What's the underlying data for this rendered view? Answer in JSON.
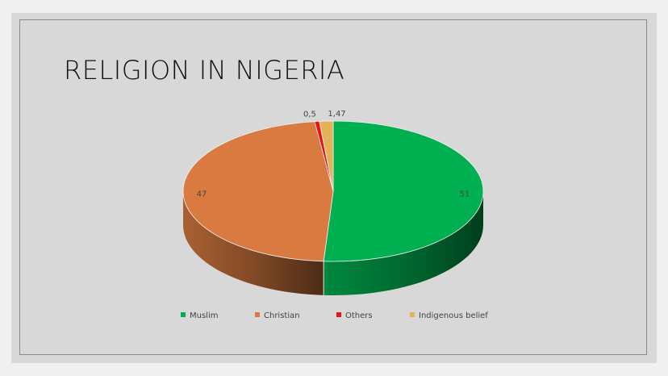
{
  "chart_data": {
    "type": "pie",
    "title": "RELIGION IN NIGERIA",
    "categories": [
      "Muslim",
      "Christian",
      "Others",
      "Indigenous belief"
    ],
    "values": [
      51,
      47,
      0.5,
      1.47
    ],
    "value_labels": [
      "51",
      "47",
      "0,5",
      "1,47"
    ],
    "colors": [
      "#00b050",
      "#d97b40",
      "#ee1111",
      "#e3b35a"
    ],
    "legend": "bottom",
    "three_d": true
  }
}
